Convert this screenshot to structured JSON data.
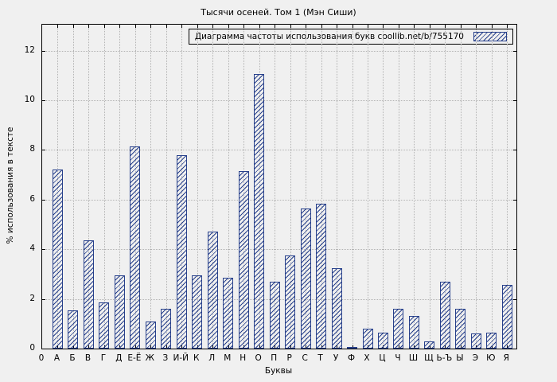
{
  "title": "Тысячи осеней. Том 1 (Мэн Сиши)",
  "legend": {
    "label": "Диаграмма частоты использования букв coollib.net/b/755170"
  },
  "axes": {
    "x_label": "Буквы",
    "y_label": "% использования в тексте",
    "y_ticks": [
      0,
      2,
      4,
      6,
      8,
      10,
      12
    ],
    "x_first_tick": "0"
  },
  "colors": {
    "background": "#f0f0f0",
    "bar": "#27408b",
    "grid": "#b3b3b3",
    "axis": "#000000"
  },
  "chart_data": {
    "type": "bar",
    "title": "Тысячи осеней. Том 1 (Мэн Сиши)",
    "legend_entries": [
      "Диаграмма частоты использования букв coollib.net/b/755170"
    ],
    "legend_position": "top-right",
    "xlabel": "Буквы",
    "ylabel": "% использования в тексте",
    "ylim": [
      0,
      13.05
    ],
    "grid": true,
    "hatch": "diagonal",
    "categories": [
      "А",
      "Б",
      "В",
      "Г",
      "Д",
      "Е-Ё",
      "Ж",
      "З",
      "И-Й",
      "К",
      "Л",
      "М",
      "Н",
      "О",
      "П",
      "Р",
      "С",
      "Т",
      "У",
      "Ф",
      "Х",
      "Ц",
      "Ч",
      "Ш",
      "Щ",
      "Ь-Ъ",
      "Ы",
      "Э",
      "Ю",
      "Я"
    ],
    "values": [
      7.2,
      1.55,
      4.35,
      1.85,
      2.95,
      8.15,
      1.1,
      1.6,
      7.8,
      2.95,
      4.7,
      2.85,
      7.15,
      11.05,
      2.7,
      3.75,
      5.65,
      5.85,
      3.25,
      0.05,
      0.8,
      0.65,
      1.6,
      1.3,
      0.3,
      2.7,
      1.6,
      0.6,
      0.65,
      2.55
    ]
  }
}
